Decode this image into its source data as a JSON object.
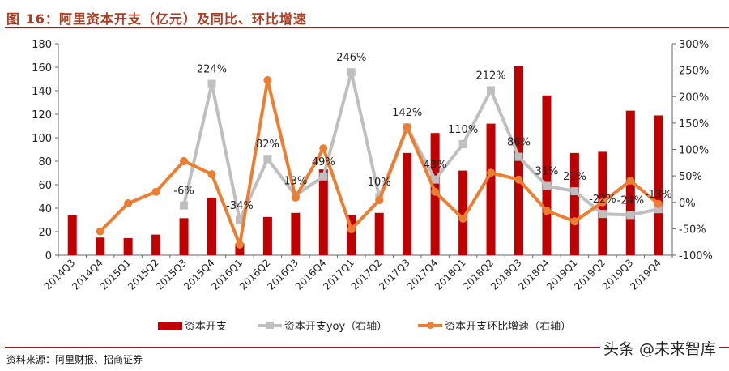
{
  "title": "图 16：阿里资本开支（亿元）及同比、环比增速",
  "source": "资料来源：阿里财报、招商证券",
  "watermark": "头条 @未来智库",
  "chart_data": {
    "type": "bar+line",
    "categories": [
      "2014Q3",
      "2014Q4",
      "2015Q1",
      "2015Q2",
      "2015Q3",
      "2015Q4",
      "2016Q1",
      "2016Q2",
      "2016Q3",
      "2016Q4",
      "2017Q1",
      "2017Q2",
      "2017Q3",
      "2017Q4",
      "2018Q1",
      "2018Q2",
      "2018Q3",
      "2018Q4",
      "2019Q1",
      "2019Q2",
      "2019Q3",
      "2019Q4"
    ],
    "left_axis": {
      "ylim": [
        0,
        180
      ],
      "ticks": [
        "0",
        "20",
        "40",
        "60",
        "80",
        "100",
        "120",
        "140",
        "160",
        "180"
      ]
    },
    "right_axis": {
      "ylim": [
        -100,
        300
      ],
      "ticks": [
        "-100%",
        "-50%",
        "0%",
        "50%",
        "100%",
        "150%",
        "200%",
        "250%",
        "300%"
      ]
    },
    "grid": false,
    "legend_position": "bottom",
    "series": [
      {
        "name": "资本开支",
        "type": "bar",
        "axis": "left",
        "color": "#c00000",
        "values": [
          34,
          15,
          14.5,
          17.5,
          31.5,
          49,
          10,
          32.5,
          36,
          73,
          34,
          36,
          87,
          104,
          72,
          112,
          161,
          136,
          87,
          88,
          123,
          119
        ]
      },
      {
        "name": "资本开支yoy（右轴）",
        "type": "line",
        "axis": "right",
        "color": "#bfbfbf",
        "marker": "square",
        "values": [
          null,
          null,
          null,
          null,
          -6,
          224,
          -34,
          82,
          13,
          49,
          246,
          10,
          142,
          43,
          110,
          212,
          86,
          31,
          21,
          -22,
          -24,
          -13
        ],
        "labels": [
          null,
          null,
          null,
          null,
          "-6%",
          "224%",
          "-34%",
          "82%",
          "13%",
          "49%",
          "246%",
          "10%",
          "142%",
          "43%",
          "110%",
          "212%",
          "86%",
          "31%",
          "21%",
          "-22%",
          "-24%",
          "-13%"
        ]
      },
      {
        "name": "资本开支环比增速（右轴）",
        "type": "line",
        "axis": "right",
        "color": "#ed7d31",
        "marker": "circle",
        "values": [
          null,
          -55,
          -2,
          20,
          78,
          53,
          -80,
          231,
          9,
          102,
          -51,
          4,
          142,
          20,
          -31,
          56,
          43,
          -16,
          -36,
          0,
          41,
          -3
        ]
      }
    ]
  }
}
